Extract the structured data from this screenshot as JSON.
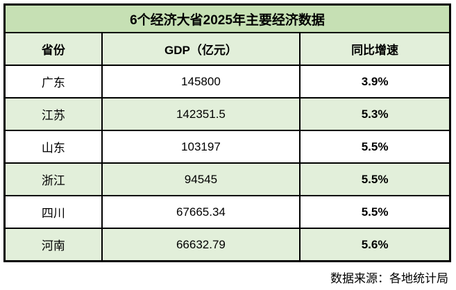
{
  "colors": {
    "title_bg": "#c6e0b4",
    "stripe_bg": "#e2efda",
    "row_bg": "#ffffff",
    "border": "#000000",
    "text": "#000000"
  },
  "table": {
    "title": "6个经济大省2025年主要经济数据",
    "columns": [
      "省份",
      "GDP（亿元）",
      "同比增速"
    ],
    "rows": [
      {
        "province": "广东",
        "gdp": "145800",
        "growth": "3.9%"
      },
      {
        "province": "江苏",
        "gdp": "142351.5",
        "growth": "5.3%"
      },
      {
        "province": "山东",
        "gdp": "103197",
        "growth": "5.5%"
      },
      {
        "province": "浙江",
        "gdp": "94545",
        "growth": "5.5%"
      },
      {
        "province": "四川",
        "gdp": "67665.34",
        "growth": "5.5%"
      },
      {
        "province": "河南",
        "gdp": "66632.79",
        "growth": "5.6%"
      }
    ]
  },
  "footer": {
    "source": "数据来源：各地统计局"
  },
  "chart_data": {
    "type": "table",
    "title": "6个经济大省2025年主要经济数据",
    "columns": [
      "省份",
      "GDP（亿元）",
      "同比增速"
    ],
    "categories": [
      "广东",
      "江苏",
      "山东",
      "浙江",
      "四川",
      "河南"
    ],
    "series": [
      {
        "name": "GDP（亿元）",
        "values": [
          145800,
          142351.5,
          103197,
          94545,
          67665.34,
          66632.79
        ]
      },
      {
        "name": "同比增速(%)",
        "values": [
          3.9,
          5.3,
          5.5,
          5.5,
          5.5,
          5.6
        ]
      }
    ],
    "source": "数据来源：各地统计局"
  }
}
